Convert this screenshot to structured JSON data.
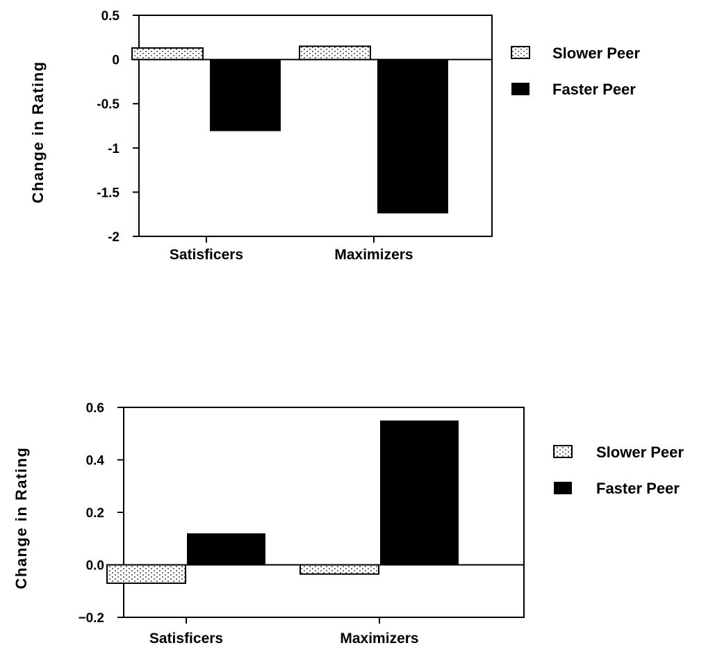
{
  "colors": {
    "faster": "#000000",
    "slower_fill": "#ffffff",
    "slower_dots": "#000000",
    "axis": "#000000"
  },
  "chart_data": [
    {
      "type": "bar",
      "categories": [
        "Satisficers",
        "Maximizers"
      ],
      "series": [
        {
          "name": "Slower Peer",
          "values": [
            0.13,
            0.15
          ]
        },
        {
          "name": "Faster Peer",
          "values": [
            -0.81,
            -1.74
          ]
        }
      ],
      "ylabel": "Change in Rating",
      "xlabel": "",
      "ylim": [
        -2,
        0.5
      ],
      "yticks": [
        0.5,
        0,
        -0.5,
        -1,
        -1.5,
        -2
      ],
      "ytick_labels": [
        "0.5",
        "0",
        "-0.5",
        "-1",
        "-1.5",
        "-2"
      ],
      "legend": [
        "Slower Peer",
        "Faster Peer"
      ],
      "legend_position": "right",
      "grid": false
    },
    {
      "type": "bar",
      "categories": [
        "Satisficers",
        "Maximizers"
      ],
      "series": [
        {
          "name": "Slower Peer",
          "values": [
            -0.07,
            -0.035
          ]
        },
        {
          "name": "Faster Peer",
          "values": [
            0.12,
            0.55
          ]
        }
      ],
      "ylabel": "Change in Rating",
      "xlabel": "",
      "ylim": [
        -0.2,
        0.6
      ],
      "yticks": [
        0.6,
        0.4,
        0.2,
        0.0,
        -0.2
      ],
      "ytick_labels": [
        "0.6",
        "0.4",
        "0.2",
        "0.0",
        "−0.2"
      ],
      "legend": [
        "Slower Peer",
        "Faster Peer"
      ],
      "legend_position": "right",
      "grid": false
    }
  ]
}
